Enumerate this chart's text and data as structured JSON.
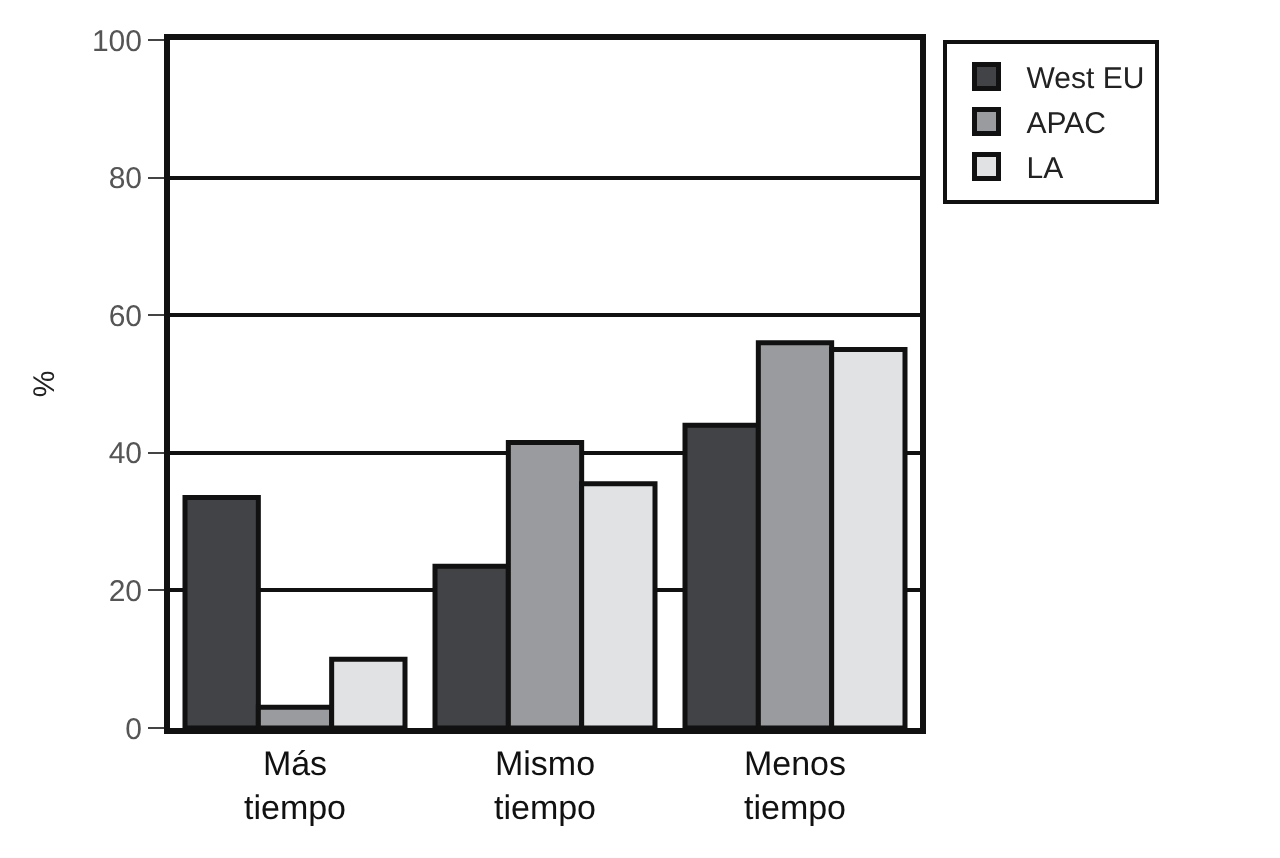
{
  "chart_data": {
    "type": "bar",
    "ylabel": "%",
    "categories": [
      "Más\ntiempo",
      "Mismo\ntiempo",
      "Menos\ntiempo"
    ],
    "series": [
      {
        "name": "West EU",
        "color": "#424347",
        "values": [
          33.5,
          23.5,
          44
        ]
      },
      {
        "name": "APAC",
        "color": "#9a9b9f",
        "values": [
          3,
          41.5,
          56
        ]
      },
      {
        "name": "LA",
        "color": "#e1e2e4",
        "values": [
          10,
          35.5,
          55
        ]
      }
    ],
    "ylim": [
      0,
      100
    ],
    "yticks": [
      0,
      20,
      40,
      60,
      80,
      100
    ],
    "grid": "y",
    "legend": "top right"
  }
}
